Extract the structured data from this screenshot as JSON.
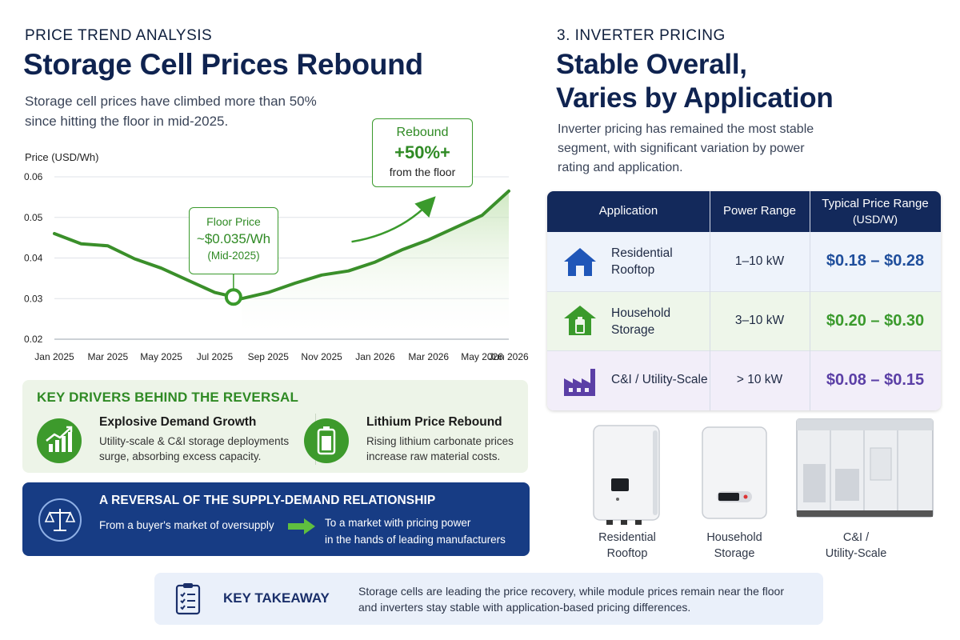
{
  "left": {
    "kicker": "PRICE TREND ANALYSIS",
    "title": "Storage Cell Prices Rebound",
    "lead_line1": "Storage cell prices have climbed more than 50%",
    "lead_line2": "since hitting the floor in mid-2025."
  },
  "chart_data": {
    "type": "line",
    "ylabel": "Price (USD/Wh)",
    "xlabel": "",
    "ylim": [
      0.02,
      0.06
    ],
    "yticks": [
      "0.06",
      "0.05",
      "0.04",
      "0.03",
      "0.02"
    ],
    "xticks": [
      "Jan 2025",
      "Mar 2025",
      "May 2025",
      "Jul 2025",
      "Sep 2025",
      "Nov 2025",
      "Jan 2026",
      "Mar 2026",
      "May 2026",
      "Jun 2026"
    ],
    "grid": "horizontal",
    "series": [
      {
        "x": [
          "2025-01",
          "2025-02",
          "2025-03",
          "2025-04",
          "2025-05",
          "2025-06",
          "2025-07",
          "2025-08",
          "2025-09",
          "2025-10",
          "2025-11",
          "2025-12",
          "2026-01",
          "2026-02",
          "2026-03",
          "2026-04",
          "2026-05",
          "2026-06"
        ],
        "values": [
          0.046,
          0.0435,
          0.043,
          0.0398,
          0.0375,
          0.0345,
          0.0315,
          0.03,
          0.0315,
          0.0338,
          0.0358,
          0.0368,
          0.039,
          0.042,
          0.0445,
          0.0475,
          0.0505,
          0.0565
        ]
      }
    ],
    "annotations": [
      {
        "label": "Floor Price",
        "value": "~$0.035/Wh",
        "note": "(Mid-2025)"
      },
      {
        "label": "Rebound",
        "value": "+50%+",
        "note": "from the floor"
      }
    ]
  },
  "drivers": {
    "title": "KEY DRIVERS BEHIND THE REVERSAL",
    "items": [
      {
        "icon": "bar-chart-growth-icon",
        "head": "Explosive Demand Growth",
        "line1": "Utility-scale & C&I storage deployments",
        "line2": "surge, absorbing excess capacity."
      },
      {
        "icon": "battery-icon",
        "head": "Lithium Price Rebound",
        "line1": "Rising lithium carbonate prices",
        "line2": "increase raw material costs."
      }
    ]
  },
  "reversal": {
    "icon": "balance-scale-icon",
    "title": "A REVERSAL OF THE SUPPLY-DEMAND RELATIONSHIP",
    "from": "From a buyer's market of oversupply",
    "to_line1": "To a market with pricing power",
    "to_line2": "in the hands of leading manufacturers"
  },
  "right": {
    "kicker": "3. INVERTER PRICING",
    "title_line1": "Stable Overall,",
    "title_line2": "Varies by Application",
    "lead_line1": "Inverter pricing has remained the most stable",
    "lead_line2": "segment, with significant variation by power",
    "lead_line3": "rating and application."
  },
  "table": {
    "headers": [
      "Application",
      "Power Range",
      "Typical Price Range",
      "(USD/W)"
    ],
    "rows": [
      {
        "icon": "house-icon",
        "app_line1": "Residential",
        "app_line2": "Rooftop",
        "power": "1–10 kW",
        "price": "$0.18 – $0.28",
        "color": "#1f4e9c",
        "bg": "#eef3fb"
      },
      {
        "icon": "house-battery-icon",
        "app_line1": "Household",
        "app_line2": "Storage",
        "power": "3–10 kW",
        "price": "$0.20 – $0.30",
        "color": "#3a9a2c",
        "bg": "#eef6ea"
      },
      {
        "icon": "factory-icon",
        "app_line1": "C&I / Utility-Scale",
        "app_line2": "",
        "power": "> 10 kW",
        "price": "$0.08 – $0.15",
        "color": "#5b3fa6",
        "bg": "#f2eef9"
      }
    ]
  },
  "products": [
    {
      "line1": "Residential",
      "line2": "Rooftop"
    },
    {
      "line1": "Household",
      "line2": "Storage"
    },
    {
      "line1": "C&I /",
      "line2": "Utility-Scale"
    }
  ],
  "takeaway": {
    "icon": "clipboard-checklist-icon",
    "title": "KEY TAKEAWAY",
    "line1": "Storage cells are leading the price recovery, while module prices remain near the floor",
    "line2": "and inverters stay stable with application-based pricing differences."
  }
}
